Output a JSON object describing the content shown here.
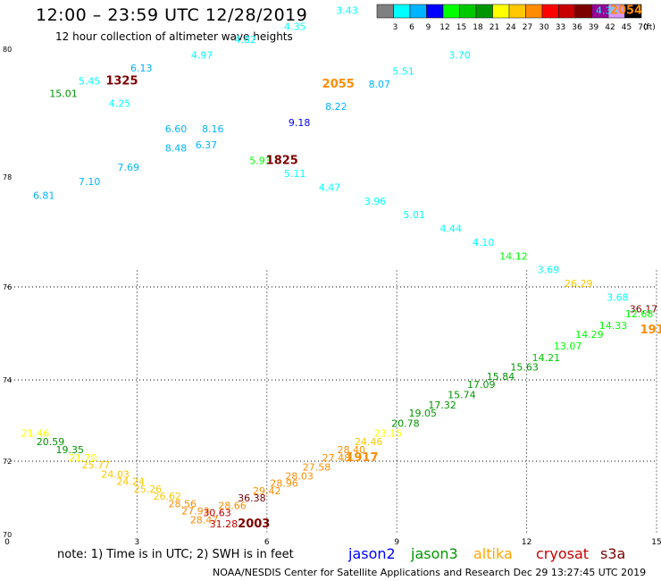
{
  "header": {
    "title": "12:00 – 23:59 UTC 12/28/2019",
    "subtitle": "12 hour collection of altimeter wave heights"
  },
  "colorbar": {
    "swatches": [
      "#808080",
      "#00ffff",
      "#00b4ff",
      "#0000ff",
      "#00ff00",
      "#00c800",
      "#009600",
      "#ffff00",
      "#ffc800",
      "#ff8c00",
      "#ff0000",
      "#c80000",
      "#7d0000",
      "#960096",
      "#d796ff",
      "#000000"
    ],
    "labels": [
      "3",
      "6",
      "9",
      "12",
      "15",
      "18",
      "21",
      "24",
      "27",
      "30",
      "33",
      "36",
      "39",
      "42",
      "45",
      "70"
    ],
    "unit": "(ft)"
  },
  "footer": {
    "note": "note: 1) Time is in UTC; 2) SWH is in feet",
    "satellites": [
      {
        "name": "jason2",
        "color": "#0000ff"
      },
      {
        "name": "jason3",
        "color": "#009600"
      },
      {
        "name": "altika",
        "color": "#ffa500"
      },
      {
        "name": "cryosat",
        "color": "#c80000"
      },
      {
        "name": "s3a",
        "color": "#7d0000"
      }
    ],
    "credit": "NOAA/NESDIS Center for Satellite Applications and Research     Dec 29 13:27:45 UTC 2019"
  },
  "chart_data": {
    "type": "scatter",
    "xlim": [
      0,
      15
    ],
    "ylim": [
      70,
      80
    ],
    "x_ticks": [
      "0",
      "3",
      "6",
      "9",
      "12",
      "15"
    ],
    "y_ticks": [
      "70",
      "72",
      "74",
      "76",
      "78",
      "80"
    ],
    "grid": true,
    "points": [
      {
        "x": 0.85,
        "y": 77.6,
        "label": "6.81",
        "color": "#00b4ff"
      },
      {
        "x": 1.9,
        "y": 77.85,
        "label": "7.10",
        "color": "#00b4ff"
      },
      {
        "x": 2.8,
        "y": 78.1,
        "label": "7.69",
        "color": "#00b4ff"
      },
      {
        "x": 3.9,
        "y": 78.4,
        "label": "8.48",
        "color": "#00b4ff"
      },
      {
        "x": 3.9,
        "y": 78.7,
        "label": "6.60",
        "color": "#00b4ff"
      },
      {
        "x": 4.6,
        "y": 78.45,
        "label": "6.37",
        "color": "#00b4ff"
      },
      {
        "x": 4.75,
        "y": 78.7,
        "label": "8.16",
        "color": "#00b4ff"
      },
      {
        "x": 5.85,
        "y": 78.2,
        "label": "5.93",
        "color": "#00ff00"
      },
      {
        "x": 6.75,
        "y": 78.8,
        "label": "9.18",
        "color": "#0000ff"
      },
      {
        "x": 7.6,
        "y": 79.05,
        "label": "8.22",
        "color": "#00b4ff"
      },
      {
        "x": 8.6,
        "y": 79.4,
        "label": "8.07",
        "color": "#00b4ff"
      },
      {
        "x": 1.9,
        "y": 79.45,
        "label": "5.45",
        "color": "#00ffff"
      },
      {
        "x": 3.1,
        "y": 79.65,
        "label": "6.13",
        "color": "#00b4ff"
      },
      {
        "x": 2.6,
        "y": 79.1,
        "label": "4.25",
        "color": "#00ffff"
      },
      {
        "x": 4.5,
        "y": 79.85,
        "label": "4.97",
        "color": "#00ffff"
      },
      {
        "x": 5.5,
        "y": 80.1,
        "label": "4.82",
        "color": "#00ffff"
      },
      {
        "x": 6.65,
        "y": 80.3,
        "label": "4.35",
        "color": "#00ffff"
      },
      {
        "x": 7.85,
        "y": 80.55,
        "label": "3.43",
        "color": "#00ffff"
      },
      {
        "x": 9.15,
        "y": 79.6,
        "label": "5.51",
        "color": "#00ffff"
      },
      {
        "x": 10.45,
        "y": 79.85,
        "label": "3.70",
        "color": "#00ffff"
      },
      {
        "x": 13.85,
        "y": 80.55,
        "label": "4.38",
        "color": "#00ffff"
      },
      {
        "x": 1.3,
        "y": 79.25,
        "label": "15.01",
        "color": "#009600"
      },
      {
        "x": 6.65,
        "y": 78.0,
        "label": "5.11",
        "color": "#00ffff"
      },
      {
        "x": 7.45,
        "y": 77.75,
        "label": "4.47",
        "color": "#00ffff"
      },
      {
        "x": 8.5,
        "y": 77.5,
        "label": "3.96",
        "color": "#00ffff"
      },
      {
        "x": 9.4,
        "y": 77.25,
        "label": "5.01",
        "color": "#00ffff"
      },
      {
        "x": 10.25,
        "y": 77.0,
        "label": "4.44",
        "color": "#00ffff"
      },
      {
        "x": 11.0,
        "y": 76.75,
        "label": "4.10",
        "color": "#00ffff"
      },
      {
        "x": 11.7,
        "y": 76.5,
        "label": "14.12",
        "color": "#00ff00"
      },
      {
        "x": 12.5,
        "y": 76.25,
        "label": "3.69",
        "color": "#00ffff"
      },
      {
        "x": 13.2,
        "y": 76.0,
        "label": "26.29",
        "color": "#ffc800"
      },
      {
        "x": 14.1,
        "y": 75.7,
        "label": "3.68",
        "color": "#00ffff"
      },
      {
        "x": 14.7,
        "y": 75.45,
        "label": "36.17",
        "color": "#7d0000"
      },
      {
        "x": 0.65,
        "y": 72.6,
        "label": "21.46",
        "color": "#ffff00"
      },
      {
        "x": 1.0,
        "y": 72.4,
        "label": "20.59",
        "color": "#009600"
      },
      {
        "x": 1.45,
        "y": 72.2,
        "label": "19.35",
        "color": "#009600"
      },
      {
        "x": 1.75,
        "y": 72.0,
        "label": "21.70",
        "color": "#ffff00"
      },
      {
        "x": 2.05,
        "y": 71.8,
        "label": "25.77",
        "color": "#ffc800"
      },
      {
        "x": 2.5,
        "y": 71.55,
        "label": "24.03",
        "color": "#ffc800"
      },
      {
        "x": 2.85,
        "y": 71.35,
        "label": "24.24",
        "color": "#ffc800"
      },
      {
        "x": 3.25,
        "y": 71.15,
        "label": "25.26",
        "color": "#ffc800"
      },
      {
        "x": 3.7,
        "y": 70.95,
        "label": "26.62",
        "color": "#ffc800"
      },
      {
        "x": 4.05,
        "y": 70.75,
        "label": "28.56",
        "color": "#ff8c00"
      },
      {
        "x": 4.35,
        "y": 70.55,
        "label": "27.93",
        "color": "#ff8c00"
      },
      {
        "x": 4.55,
        "y": 70.3,
        "label": "28.47",
        "color": "#ff8c00"
      },
      {
        "x": 4.85,
        "y": 70.5,
        "label": "30.63",
        "color": "#c80000"
      },
      {
        "x": 5.0,
        "y": 70.2,
        "label": "31.28",
        "color": "#c80000"
      },
      {
        "x": 5.2,
        "y": 70.7,
        "label": "28.66",
        "color": "#ff8c00"
      },
      {
        "x": 5.65,
        "y": 70.9,
        "label": "36.38",
        "color": "#7d0000"
      },
      {
        "x": 6.0,
        "y": 71.1,
        "label": "29.42",
        "color": "#ff8c00"
      },
      {
        "x": 6.4,
        "y": 71.3,
        "label": "28.96",
        "color": "#ff8c00"
      },
      {
        "x": 6.75,
        "y": 71.5,
        "label": "28.03",
        "color": "#ff8c00"
      },
      {
        "x": 7.15,
        "y": 71.75,
        "label": "27.58",
        "color": "#ff8c00"
      },
      {
        "x": 7.6,
        "y": 72.0,
        "label": "27.48",
        "color": "#ff8c00"
      },
      {
        "x": 7.95,
        "y": 72.2,
        "label": "28.40",
        "color": "#ff8c00"
      },
      {
        "x": 8.35,
        "y": 72.4,
        "label": "24.46",
        "color": "#ffc800"
      },
      {
        "x": 8.8,
        "y": 72.6,
        "label": "23.15",
        "color": "#ffff00"
      },
      {
        "x": 9.2,
        "y": 72.85,
        "label": "20.78",
        "color": "#009600"
      },
      {
        "x": 9.6,
        "y": 73.1,
        "label": "19.05",
        "color": "#009600"
      },
      {
        "x": 10.05,
        "y": 73.3,
        "label": "17.32",
        "color": "#009600"
      },
      {
        "x": 10.5,
        "y": 73.55,
        "label": "15.74",
        "color": "#009600"
      },
      {
        "x": 10.95,
        "y": 73.8,
        "label": "17.09",
        "color": "#009600"
      },
      {
        "x": 11.4,
        "y": 74.0,
        "label": "15.84",
        "color": "#009600"
      },
      {
        "x": 11.95,
        "y": 74.2,
        "label": "15.63",
        "color": "#009600"
      },
      {
        "x": 12.45,
        "y": 74.4,
        "label": "14.21",
        "color": "#00c800"
      },
      {
        "x": 12.95,
        "y": 74.65,
        "label": "13.07",
        "color": "#00ff00"
      },
      {
        "x": 13.45,
        "y": 74.9,
        "label": "14.29",
        "color": "#00ff00"
      },
      {
        "x": 14.0,
        "y": 75.1,
        "label": "14.33",
        "color": "#00ff00"
      },
      {
        "x": 14.6,
        "y": 75.35,
        "label": "12.68",
        "color": "#00ff00"
      }
    ],
    "time_markers": [
      {
        "x": 2.65,
        "y": 79.45,
        "label": "1325",
        "color": "#7d0000"
      },
      {
        "x": 7.65,
        "y": 79.4,
        "label": "2055",
        "color": "#ff8c00"
      },
      {
        "x": 14.3,
        "y": 80.55,
        "label": "2054",
        "color": "#ff8c00"
      },
      {
        "x": 6.35,
        "y": 78.2,
        "label": "1825",
        "color": "#7d0000"
      },
      {
        "x": 8.2,
        "y": 72.0,
        "label": "1917",
        "color": "#ff8c00"
      },
      {
        "x": 14.9,
        "y": 75.0,
        "label": "191",
        "color": "#ff8c00"
      },
      {
        "x": 5.7,
        "y": 70.2,
        "label": "2003",
        "color": "#7d0000"
      }
    ]
  }
}
